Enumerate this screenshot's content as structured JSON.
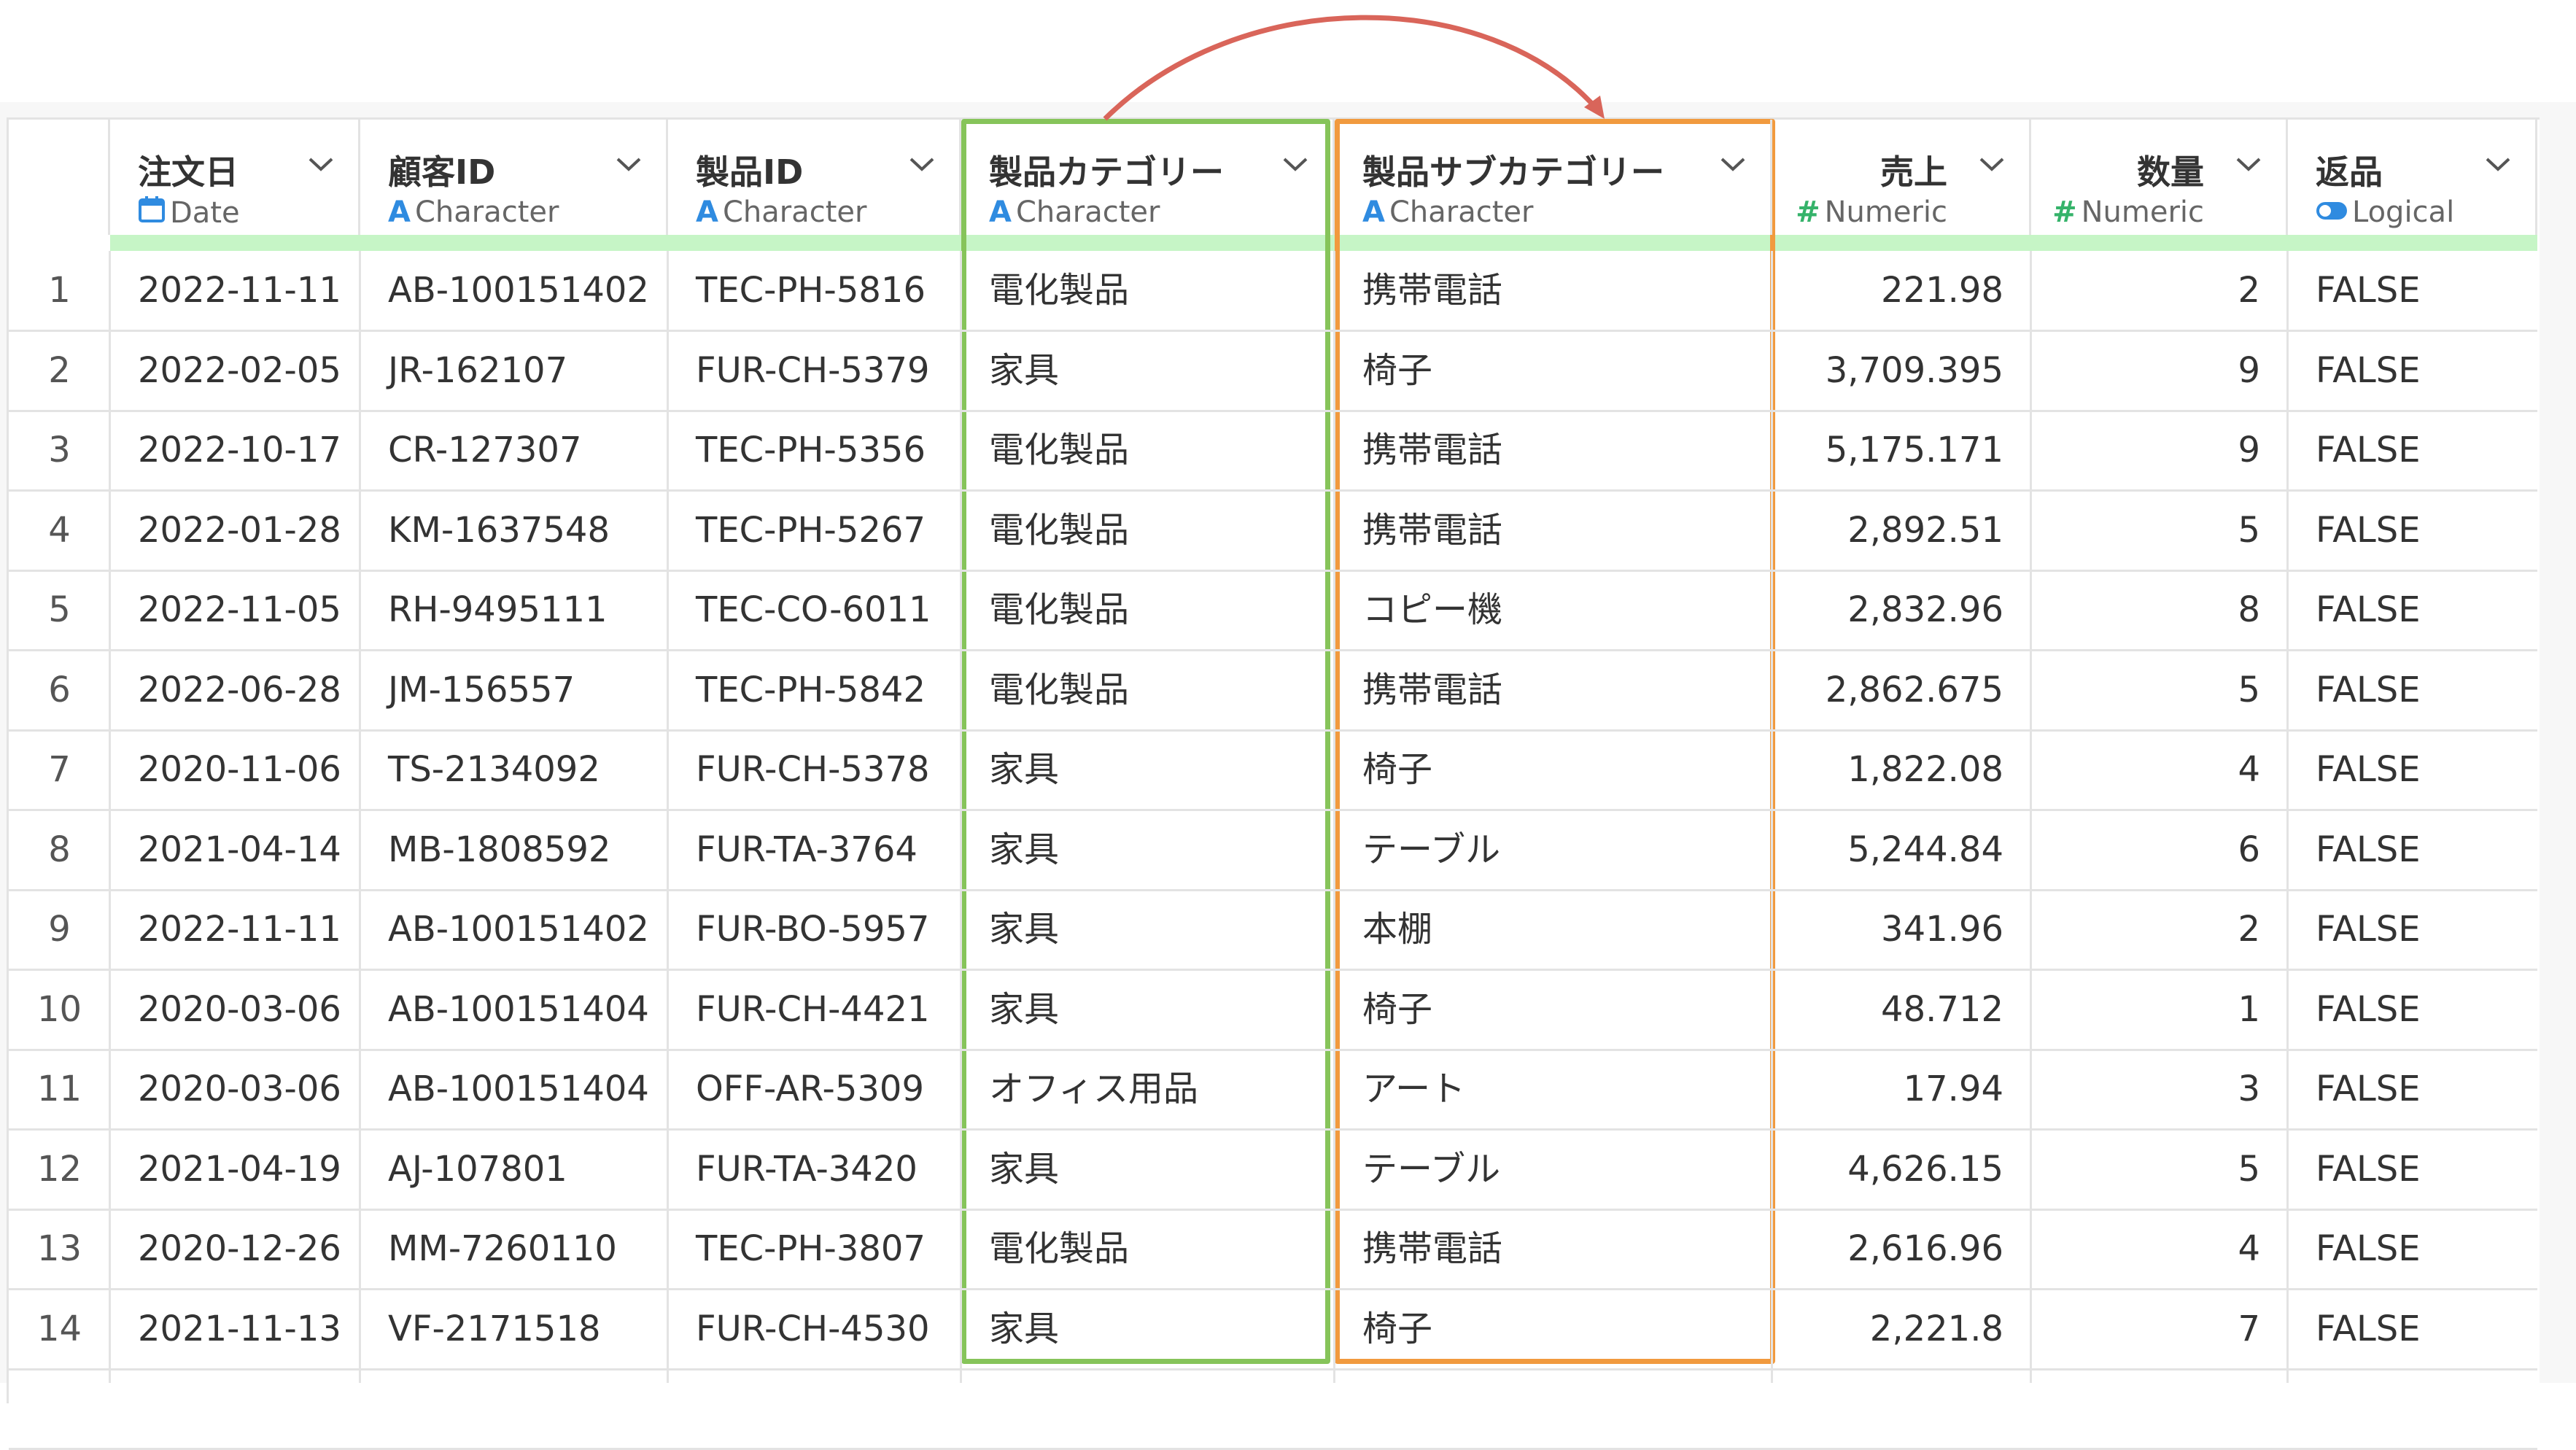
{
  "columns": [
    {
      "title": "",
      "type": "",
      "icon": "",
      "align": "center"
    },
    {
      "title": "注文日",
      "type": "Date",
      "icon": "calendar-icon",
      "align": "left"
    },
    {
      "title": "顧客ID",
      "type": "Character",
      "icon": "character-type-icon",
      "align": "left"
    },
    {
      "title": "製品ID",
      "type": "Character",
      "icon": "character-type-icon",
      "align": "left"
    },
    {
      "title": "製品カテゴリー",
      "type": "Character",
      "icon": "character-type-icon",
      "align": "left"
    },
    {
      "title": "製品サブカテゴリー",
      "type": "Character",
      "icon": "character-type-icon",
      "align": "left"
    },
    {
      "title": "売上",
      "type": "Numeric",
      "icon": "numeric-type-icon",
      "align": "right"
    },
    {
      "title": "数量",
      "type": "Numeric",
      "icon": "numeric-type-icon",
      "align": "right"
    },
    {
      "title": "返品",
      "type": "Logical",
      "icon": "logical-toggle-icon",
      "align": "left"
    }
  ],
  "type_glyphs": {
    "character": "A",
    "numeric": "#"
  },
  "rows": [
    [
      "1",
      "2022-11-11",
      "AB-100151402",
      "TEC-PH-5816",
      "電化製品",
      "携帯電話",
      "221.98",
      "2",
      "FALSE"
    ],
    [
      "2",
      "2022-02-05",
      "JR-162107",
      "FUR-CH-5379",
      "家具",
      "椅子",
      "3,709.395",
      "9",
      "FALSE"
    ],
    [
      "3",
      "2022-10-17",
      "CR-127307",
      "TEC-PH-5356",
      "電化製品",
      "携帯電話",
      "5,175.171",
      "9",
      "FALSE"
    ],
    [
      "4",
      "2022-01-28",
      "KM-1637548",
      "TEC-PH-5267",
      "電化製品",
      "携帯電話",
      "2,892.51",
      "5",
      "FALSE"
    ],
    [
      "5",
      "2022-11-05",
      "RH-9495111",
      "TEC-CO-6011",
      "電化製品",
      "コピー機",
      "2,832.96",
      "8",
      "FALSE"
    ],
    [
      "6",
      "2022-06-28",
      "JM-156557",
      "TEC-PH-5842",
      "電化製品",
      "携帯電話",
      "2,862.675",
      "5",
      "FALSE"
    ],
    [
      "7",
      "2020-11-06",
      "TS-2134092",
      "FUR-CH-5378",
      "家具",
      "椅子",
      "1,822.08",
      "4",
      "FALSE"
    ],
    [
      "8",
      "2021-04-14",
      "MB-1808592",
      "FUR-TA-3764",
      "家具",
      "テーブル",
      "5,244.84",
      "6",
      "FALSE"
    ],
    [
      "9",
      "2022-11-11",
      "AB-100151402",
      "FUR-BO-5957",
      "家具",
      "本棚",
      "341.96",
      "2",
      "FALSE"
    ],
    [
      "10",
      "2020-03-06",
      "AB-100151404",
      "FUR-CH-4421",
      "家具",
      "椅子",
      "48.712",
      "1",
      "FALSE"
    ],
    [
      "11",
      "2020-03-06",
      "AB-100151404",
      "OFF-AR-5309",
      "オフィス用品",
      "アート",
      "17.94",
      "3",
      "FALSE"
    ],
    [
      "12",
      "2021-04-19",
      "AJ-107801",
      "FUR-TA-3420",
      "家具",
      "テーブル",
      "4,626.15",
      "5",
      "FALSE"
    ],
    [
      "13",
      "2020-12-26",
      "MM-7260110",
      "TEC-PH-3807",
      "電化製品",
      "携帯電話",
      "2,616.96",
      "4",
      "FALSE"
    ],
    [
      "14",
      "2021-11-13",
      "VF-2171518",
      "FUR-CH-4530",
      "家具",
      "椅子",
      "2,221.8",
      "7",
      "FALSE"
    ]
  ],
  "colors": {
    "highlight_green": "#86c45a",
    "highlight_orange": "#f19a3e",
    "arrow": "#d9655a",
    "type_blue": "#2f8be0",
    "type_green": "#35b36a",
    "header_bar": "#c6f5c6"
  }
}
